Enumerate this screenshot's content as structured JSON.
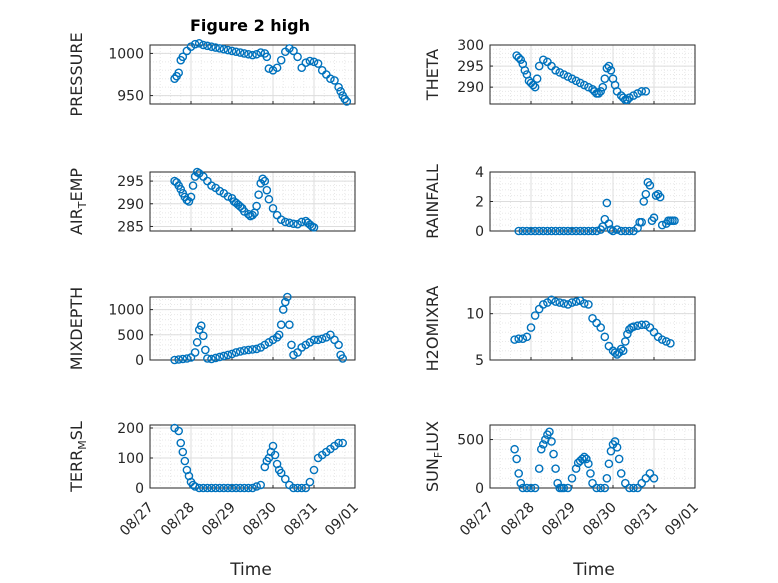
{
  "figure_title": "Figure 2 high",
  "x_axis_label": "Time",
  "x_ticks": [
    "08/27",
    "08/28",
    "08/29",
    "08/30",
    "08/31",
    "09/01"
  ],
  "colors": {
    "marker": "#0072BD",
    "axis": "#262626",
    "grid_major": "#dddddd",
    "grid_minor": "#e8e8e8"
  },
  "chart_data": [
    {
      "type": "scatter",
      "ylabel": "PRESSURE",
      "ylim": [
        940,
        1010
      ],
      "yticks": [
        950,
        1000
      ],
      "x_range": [
        0,
        5
      ],
      "x": [
        0.6,
        0.65,
        0.7,
        0.75,
        0.8,
        0.9,
        1.0,
        1.1,
        1.2,
        1.3,
        1.4,
        1.5,
        1.6,
        1.7,
        1.8,
        1.9,
        2.0,
        2.1,
        2.2,
        2.3,
        2.4,
        2.5,
        2.6,
        2.7,
        2.8,
        2.85,
        2.9,
        3.0,
        3.1,
        3.2,
        3.3,
        3.4,
        3.5,
        3.6,
        3.7,
        3.8,
        3.9,
        4.0,
        4.1,
        4.2,
        4.3,
        4.4,
        4.5,
        4.6,
        4.65,
        4.7,
        4.75,
        4.8
      ],
      "y": [
        970,
        973,
        977,
        992,
        996,
        1003,
        1008,
        1011,
        1012,
        1010,
        1009,
        1008,
        1007,
        1006,
        1005,
        1004,
        1003,
        1002,
        1001,
        1000,
        999,
        998,
        999,
        1001,
        1000,
        996,
        982,
        980,
        983,
        992,
        1002,
        1006,
        1003,
        996,
        983,
        989,
        991,
        990,
        988,
        980,
        975,
        970,
        968,
        960,
        955,
        950,
        946,
        943
      ]
    },
    {
      "type": "scatter",
      "ylabel": "THETA",
      "ylim": [
        286,
        300
      ],
      "yticks": [
        290,
        295,
        300
      ],
      "x_range": [
        0,
        5
      ],
      "x": [
        0.65,
        0.7,
        0.75,
        0.8,
        0.85,
        0.9,
        0.95,
        1.0,
        1.05,
        1.1,
        1.15,
        1.2,
        1.3,
        1.4,
        1.5,
        1.6,
        1.7,
        1.8,
        1.9,
        2.0,
        2.1,
        2.2,
        2.3,
        2.4,
        2.5,
        2.55,
        2.6,
        2.65,
        2.7,
        2.75,
        2.8,
        2.85,
        2.9,
        2.95,
        3.0,
        3.05,
        3.1,
        3.2,
        3.25,
        3.3,
        3.35,
        3.4,
        3.5,
        3.6,
        3.7,
        3.8
      ],
      "y": [
        297.5,
        297,
        296.5,
        295.5,
        294,
        293,
        291.5,
        291,
        290.5,
        290,
        292,
        295,
        296.5,
        296,
        295,
        294,
        293.5,
        293,
        292.5,
        292,
        291.5,
        291,
        290.5,
        290,
        289.5,
        289,
        288.5,
        288.5,
        289,
        290,
        292,
        294.5,
        295,
        294,
        292,
        290.5,
        289,
        288,
        287.5,
        287,
        287,
        287.5,
        288,
        288.5,
        289,
        289
      ]
    },
    {
      "type": "scatter",
      "ylabel": "AIR_TEMP",
      "ylim": [
        284,
        297
      ],
      "yticks": [
        285,
        290,
        295
      ],
      "x_range": [
        0,
        5
      ],
      "x": [
        0.6,
        0.65,
        0.7,
        0.75,
        0.8,
        0.85,
        0.9,
        0.95,
        1.0,
        1.05,
        1.1,
        1.15,
        1.2,
        1.3,
        1.4,
        1.5,
        1.6,
        1.7,
        1.8,
        1.9,
        2.0,
        2.05,
        2.1,
        2.15,
        2.2,
        2.25,
        2.3,
        2.4,
        2.45,
        2.5,
        2.55,
        2.6,
        2.65,
        2.7,
        2.75,
        2.8,
        2.85,
        2.9,
        3.0,
        3.1,
        3.2,
        3.3,
        3.4,
        3.5,
        3.6,
        3.7,
        3.8,
        3.85,
        3.9,
        3.95,
        4.0
      ],
      "y": [
        295,
        294.7,
        294,
        293.2,
        292.3,
        291.5,
        290.8,
        290.5,
        291.5,
        294,
        296,
        297,
        296.7,
        296,
        295,
        294,
        293.5,
        292.8,
        292.3,
        291.6,
        291.2,
        290.5,
        290.2,
        289.8,
        289.4,
        289,
        288.3,
        287.7,
        287.3,
        287.5,
        288,
        289.5,
        292,
        294.5,
        295.5,
        295,
        293,
        291,
        289,
        287.5,
        286.5,
        286,
        285.8,
        285.6,
        285.5,
        286,
        286.2,
        285.8,
        285.4,
        285,
        284.8
      ]
    },
    {
      "type": "scatter",
      "ylabel": "RAINFALL",
      "ylim": [
        0,
        4
      ],
      "yticks": [
        0,
        2,
        4
      ],
      "x_range": [
        0,
        5
      ],
      "x": [
        0.7,
        0.8,
        0.9,
        1.0,
        1.1,
        1.2,
        1.3,
        1.4,
        1.5,
        1.6,
        1.7,
        1.8,
        1.9,
        2.0,
        2.1,
        2.2,
        2.3,
        2.4,
        2.5,
        2.6,
        2.7,
        2.75,
        2.8,
        2.85,
        2.9,
        2.95,
        3.0,
        3.1,
        3.2,
        3.3,
        3.4,
        3.5,
        3.6,
        3.65,
        3.7,
        3.75,
        3.8,
        3.85,
        3.9,
        3.95,
        4.0,
        4.05,
        4.1,
        4.15,
        4.2,
        4.3,
        4.35,
        4.4,
        4.45,
        4.5
      ],
      "y": [
        0,
        0,
        0,
        0,
        0,
        0,
        0,
        0,
        0,
        0,
        0,
        0,
        0,
        0,
        0,
        0,
        0,
        0,
        0,
        0,
        0.1,
        0.3,
        0.8,
        1.9,
        0.5,
        0.1,
        0,
        0.1,
        0,
        0,
        0,
        0,
        0.2,
        0.6,
        0.6,
        2.0,
        2.5,
        3.3,
        3.1,
        0.7,
        0.9,
        2.4,
        2.5,
        2.3,
        0.4,
        0.5,
        0.7,
        0.7,
        0.7,
        0.7
      ]
    },
    {
      "type": "scatter",
      "ylabel": "MIXDEPTH",
      "ylim": [
        0,
        1250
      ],
      "yticks": [
        0,
        500,
        1000
      ],
      "x_range": [
        0,
        5
      ],
      "x": [
        0.6,
        0.7,
        0.8,
        0.9,
        1.0,
        1.1,
        1.15,
        1.2,
        1.25,
        1.3,
        1.35,
        1.4,
        1.5,
        1.6,
        1.7,
        1.8,
        1.9,
        2.0,
        2.1,
        2.2,
        2.3,
        2.4,
        2.5,
        2.6,
        2.7,
        2.8,
        2.9,
        3.0,
        3.1,
        3.15,
        3.2,
        3.25,
        3.3,
        3.35,
        3.4,
        3.45,
        3.5,
        3.6,
        3.7,
        3.8,
        3.9,
        4.0,
        4.1,
        4.2,
        4.3,
        4.4,
        4.5,
        4.6,
        4.65,
        4.7
      ],
      "y": [
        0,
        10,
        20,
        30,
        50,
        150,
        350,
        600,
        680,
        480,
        200,
        30,
        20,
        40,
        60,
        80,
        100,
        120,
        150,
        170,
        190,
        200,
        210,
        220,
        250,
        300,
        350,
        400,
        450,
        500,
        700,
        1000,
        1150,
        1250,
        700,
        300,
        100,
        150,
        250,
        300,
        350,
        400,
        400,
        420,
        450,
        500,
        400,
        300,
        100,
        30
      ]
    },
    {
      "type": "scatter",
      "ylabel": "H2OMIXRA",
      "ylim": [
        5,
        11.8
      ],
      "yticks": [
        5,
        10
      ],
      "x_range": [
        0,
        5
      ],
      "x": [
        0.6,
        0.7,
        0.8,
        0.9,
        1.0,
        1.1,
        1.2,
        1.3,
        1.4,
        1.5,
        1.6,
        1.7,
        1.8,
        1.9,
        2.0,
        2.1,
        2.2,
        2.3,
        2.4,
        2.5,
        2.6,
        2.7,
        2.8,
        2.9,
        3.0,
        3.05,
        3.1,
        3.15,
        3.2,
        3.25,
        3.3,
        3.35,
        3.4,
        3.45,
        3.5,
        3.6,
        3.7,
        3.8,
        3.9,
        4.0,
        4.1,
        4.2,
        4.3,
        4.4
      ],
      "y": [
        7.2,
        7.3,
        7.3,
        7.5,
        8.5,
        9.8,
        10.5,
        11.0,
        11.2,
        11.5,
        11.3,
        11.2,
        11.1,
        11.0,
        11.2,
        11.3,
        11.4,
        11.1,
        11.0,
        9.5,
        9.0,
        8.5,
        7.5,
        6.5,
        6.0,
        5.8,
        5.6,
        5.8,
        6.2,
        6.0,
        7.0,
        7.8,
        8.3,
        8.5,
        8.6,
        8.7,
        8.8,
        8.8,
        8.5,
        8.0,
        7.5,
        7.2,
        7.0,
        6.8
      ]
    },
    {
      "type": "scatter",
      "ylabel": "TERR_MSL",
      "ylim": [
        0,
        210
      ],
      "yticks": [
        0,
        100,
        200
      ],
      "x_range": [
        0,
        5
      ],
      "x": [
        0.6,
        0.7,
        0.75,
        0.8,
        0.85,
        0.9,
        0.95,
        1.0,
        1.05,
        1.1,
        1.2,
        1.3,
        1.4,
        1.5,
        1.6,
        1.7,
        1.8,
        1.9,
        2.0,
        2.1,
        2.2,
        2.3,
        2.4,
        2.5,
        2.6,
        2.7,
        2.8,
        2.85,
        2.9,
        2.95,
        3.0,
        3.05,
        3.1,
        3.15,
        3.2,
        3.3,
        3.4,
        3.5,
        3.6,
        3.7,
        3.8,
        3.9,
        4.0,
        4.1,
        4.2,
        4.3,
        4.4,
        4.5,
        4.6,
        4.7
      ],
      "y": [
        200,
        190,
        150,
        120,
        90,
        60,
        40,
        20,
        10,
        5,
        0,
        0,
        0,
        0,
        0,
        0,
        0,
        0,
        0,
        0,
        0,
        0,
        0,
        0,
        5,
        10,
        70,
        90,
        100,
        120,
        140,
        110,
        80,
        60,
        50,
        30,
        10,
        0,
        0,
        0,
        0,
        20,
        60,
        100,
        110,
        120,
        130,
        140,
        150,
        150
      ]
    },
    {
      "type": "scatter",
      "ylabel": "SUN_FLUX",
      "ylim": [
        0,
        650
      ],
      "yticks": [
        0,
        500
      ],
      "x_range": [
        0,
        5
      ],
      "x": [
        0.6,
        0.65,
        0.7,
        0.75,
        0.8,
        0.9,
        1.0,
        1.1,
        1.2,
        1.25,
        1.3,
        1.35,
        1.4,
        1.45,
        1.5,
        1.55,
        1.6,
        1.65,
        1.7,
        1.75,
        1.8,
        1.9,
        2.0,
        2.1,
        2.15,
        2.2,
        2.25,
        2.3,
        2.35,
        2.4,
        2.45,
        2.5,
        2.6,
        2.7,
        2.8,
        2.85,
        2.9,
        2.95,
        3.0,
        3.05,
        3.1,
        3.15,
        3.2,
        3.3,
        3.4,
        3.5,
        3.6,
        3.7,
        3.8,
        3.9,
        4.0
      ],
      "y": [
        400,
        300,
        150,
        50,
        0,
        0,
        0,
        0,
        200,
        400,
        450,
        500,
        550,
        580,
        480,
        350,
        200,
        50,
        0,
        0,
        0,
        0,
        100,
        200,
        260,
        280,
        300,
        320,
        300,
        250,
        150,
        50,
        0,
        0,
        0,
        100,
        250,
        380,
        450,
        480,
        420,
        300,
        150,
        50,
        0,
        0,
        0,
        50,
        100,
        150,
        100
      ]
    }
  ]
}
